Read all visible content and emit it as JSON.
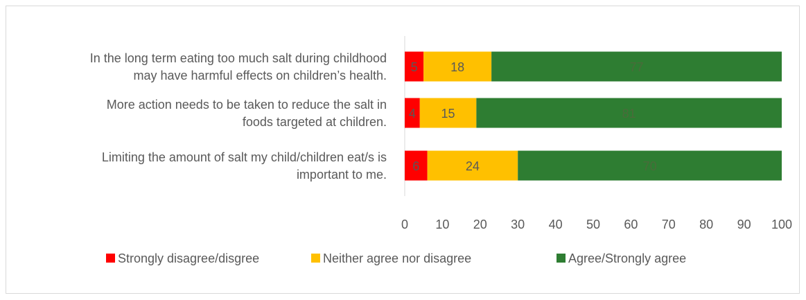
{
  "chart_data": {
    "type": "bar",
    "orientation": "horizontal",
    "stacked": true,
    "categories": [
      [
        "In the long term eating too much salt during childhood",
        "may have harmful effects on children’s health."
      ],
      [
        "More action needs to be taken to reduce the salt in",
        "foods targeted at children."
      ],
      [
        "Limiting the amount of salt my child/children eat/s is",
        "important to me."
      ]
    ],
    "series": [
      {
        "name": "Strongly disagree/disgree",
        "values": [
          5,
          4,
          6
        ],
        "labels": [
          "5",
          "4",
          "6"
        ],
        "color": "#ff0000",
        "label_color": "#595959"
      },
      {
        "name": "Neither agree nor disagree",
        "values": [
          18,
          15,
          24
        ],
        "labels": [
          "18",
          "15",
          "24"
        ],
        "color": "#ffc000",
        "label_color": "#595959"
      },
      {
        "name": "Agree/Strongly agree",
        "values": [
          77,
          81,
          70
        ],
        "labels": [
          "77",
          "81",
          "70"
        ],
        "color": "#2e7d32",
        "label_color": "#4a6b3a"
      }
    ],
    "xlim": [
      0,
      100
    ],
    "x_ticks": [
      "0",
      "10",
      "20",
      "30",
      "40",
      "50",
      "60",
      "70",
      "80",
      "90",
      "100"
    ],
    "grid": false,
    "legend_position": "bottom"
  }
}
